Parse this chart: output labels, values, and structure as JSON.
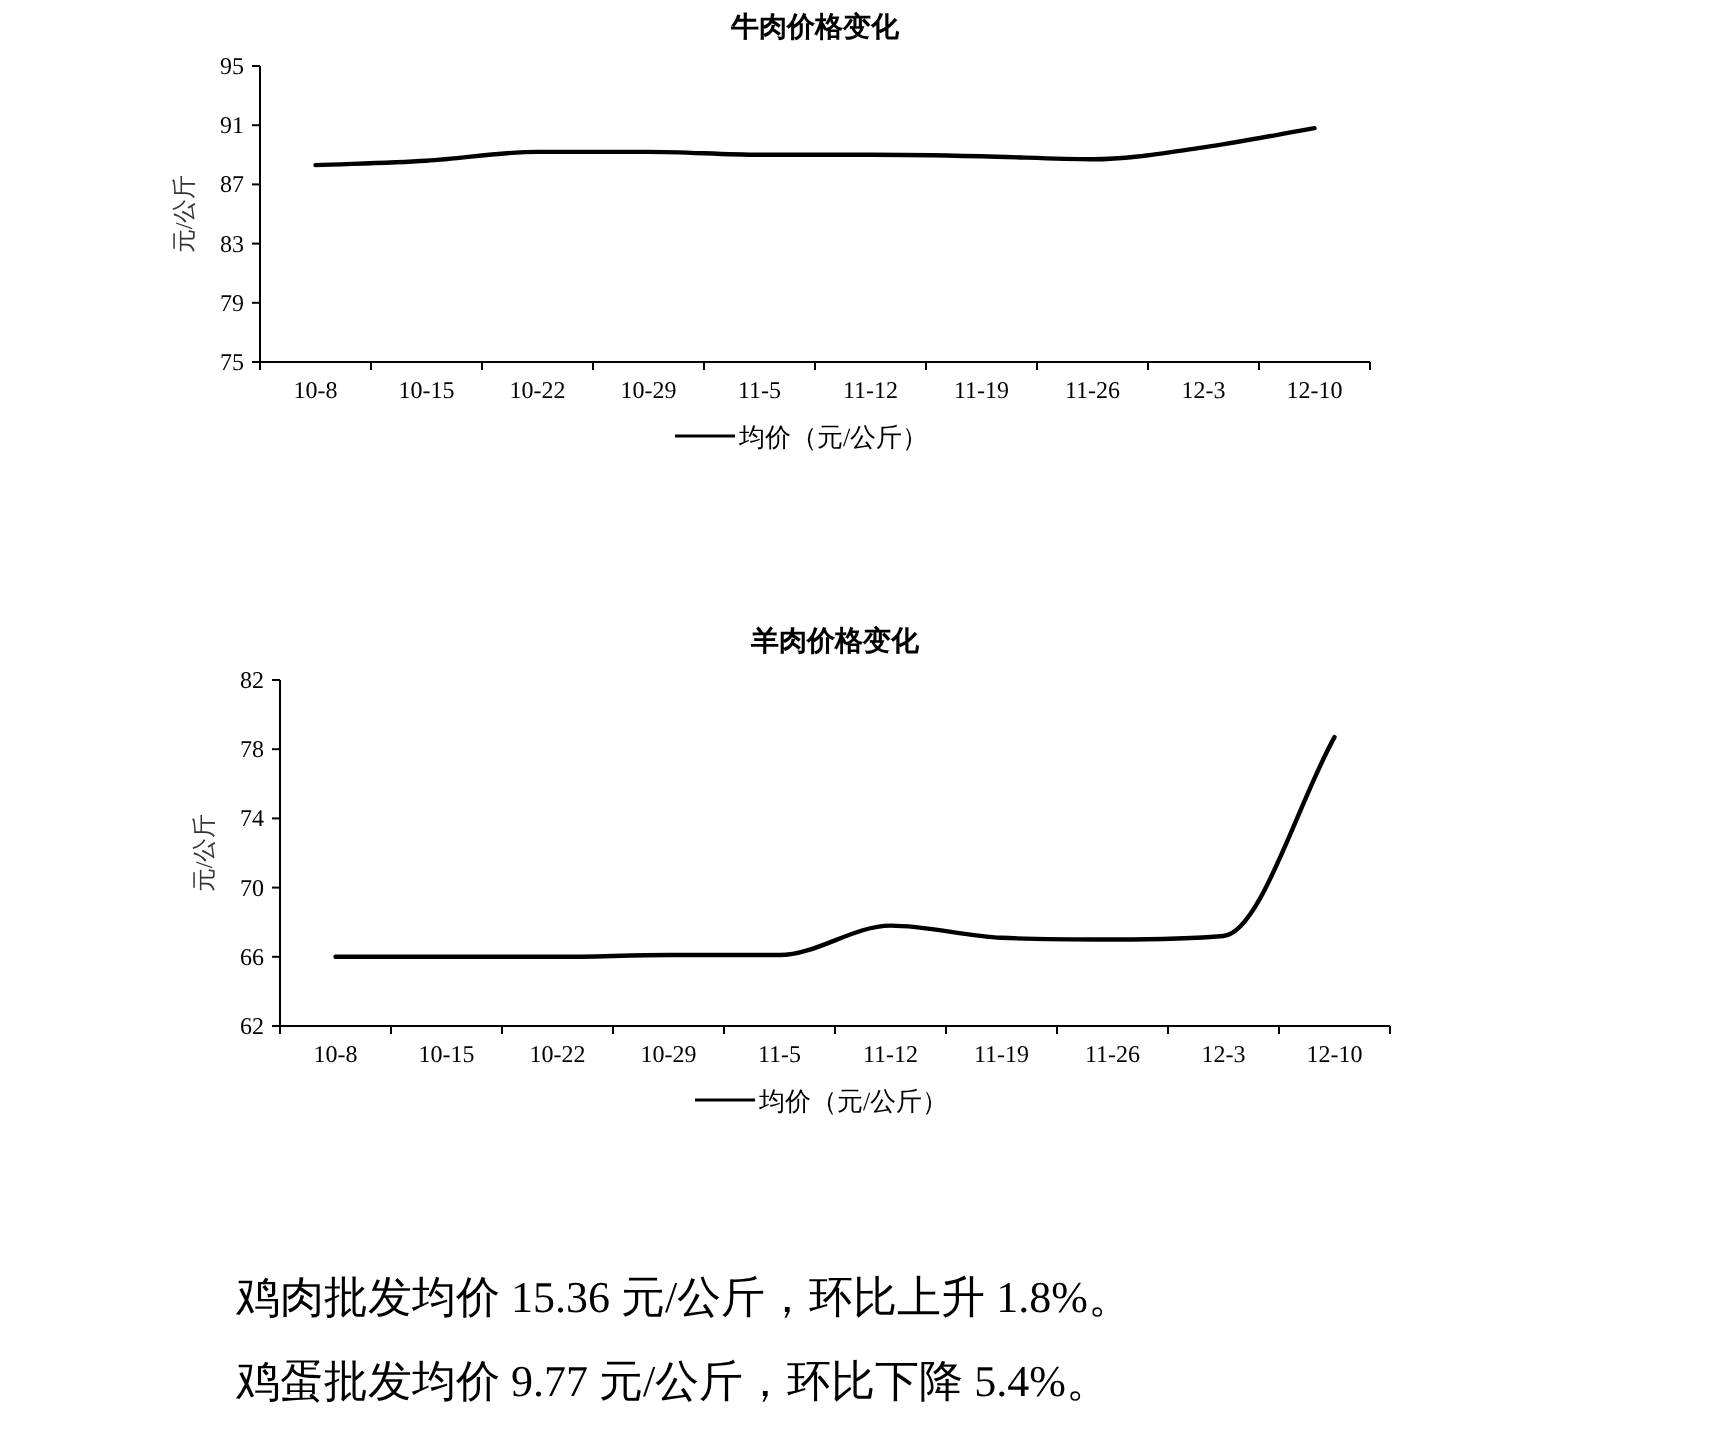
{
  "chart_data": [
    {
      "type": "line",
      "title": "牛肉价格变化",
      "ylabel": "元/公斤",
      "categories": [
        "10-8",
        "10-15",
        "10-22",
        "10-29",
        "11-5",
        "11-12",
        "11-19",
        "11-26",
        "12-3",
        "12-10"
      ],
      "series": [
        {
          "name": "均价（元/公斤）",
          "color": "#000000",
          "values": [
            88.3,
            88.6,
            89.2,
            89.2,
            89.0,
            89.0,
            88.9,
            88.7,
            89.5,
            90.8
          ]
        }
      ],
      "ylim": [
        75,
        95
      ],
      "yticks": [
        75,
        79,
        83,
        87,
        91,
        95
      ],
      "legend": "bottom",
      "marker": "none",
      "line_style": "solid",
      "grid": false
    },
    {
      "type": "line",
      "title": "羊肉价格变化",
      "ylabel": "元/公斤",
      "categories": [
        "10-8",
        "10-15",
        "10-22",
        "10-29",
        "11-5",
        "11-12",
        "11-19",
        "11-26",
        "12-3",
        "12-10"
      ],
      "series": [
        {
          "name": "均价（元/公斤）",
          "color": "#000000",
          "values": [
            66.0,
            66.0,
            66.0,
            66.1,
            66.1,
            67.8,
            67.1,
            67.0,
            67.2,
            78.7
          ]
        }
      ],
      "ylim": [
        62,
        82
      ],
      "yticks": [
        62,
        66,
        70,
        74,
        78,
        82
      ],
      "legend": "bottom",
      "marker": "none",
      "line_style": "solid",
      "grid": false
    },
    {
      "type": "other",
      "annotations": [
        "鸡肉批发均价 15.36 元/公斤，环比上升 1.8%。",
        "鸡蛋批发均价 9.77 元/公斤，环比下降 5.4%。"
      ]
    }
  ]
}
